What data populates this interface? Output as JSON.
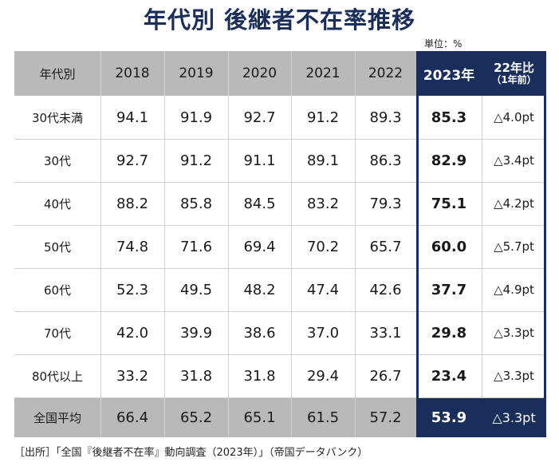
{
  "title": "年代別  後継者不在率推移",
  "unit": "単位：%",
  "source": "［出所］「全国『後継者不在率』動向調査（2023年）」（帝国データバンク）",
  "colors": {
    "header_gray": "#b9b9b9",
    "highlight_navy": "#1a2e5c",
    "title_navy": "#1b2e5a"
  },
  "chart_data": {
    "type": "table",
    "title": "年代別  後継者不在率推移",
    "unit": "単位：%",
    "header": [
      "年代別",
      "2018",
      "2019",
      "2020",
      "2021",
      "2022",
      "2023年",
      "22年比\n（1年前）"
    ],
    "header_22_line1": "22年比",
    "header_22_line2": "（1年前）",
    "rows": [
      {
        "label": "30代未満",
        "values": [
          "94.1",
          "91.9",
          "92.7",
          "91.2",
          "89.3",
          "85.3"
        ],
        "change": "△4.0pt"
      },
      {
        "label": "30代",
        "values": [
          "92.7",
          "91.2",
          "91.1",
          "89.1",
          "86.3",
          "82.9"
        ],
        "change": "△3.4pt"
      },
      {
        "label": "40代",
        "values": [
          "88.2",
          "85.8",
          "84.5",
          "83.2",
          "79.3",
          "75.1"
        ],
        "change": "△4.2pt"
      },
      {
        "label": "50代",
        "values": [
          "74.8",
          "71.6",
          "69.4",
          "70.2",
          "65.7",
          "60.0"
        ],
        "change": "△5.7pt"
      },
      {
        "label": "60代",
        "values": [
          "52.3",
          "49.5",
          "48.2",
          "47.4",
          "42.6",
          "37.7"
        ],
        "change": "△4.9pt"
      },
      {
        "label": "70代",
        "values": [
          "42.0",
          "39.9",
          "38.6",
          "37.0",
          "33.1",
          "29.8"
        ],
        "change": "△3.3pt"
      },
      {
        "label": "80代以上",
        "values": [
          "33.2",
          "31.8",
          "31.8",
          "29.4",
          "26.7",
          "23.4"
        ],
        "change": "△3.3pt"
      }
    ],
    "total": {
      "label": "全国平均",
      "values": [
        "66.4",
        "65.2",
        "65.1",
        "61.5",
        "57.2",
        "53.9"
      ],
      "change": "△3.3pt"
    }
  }
}
